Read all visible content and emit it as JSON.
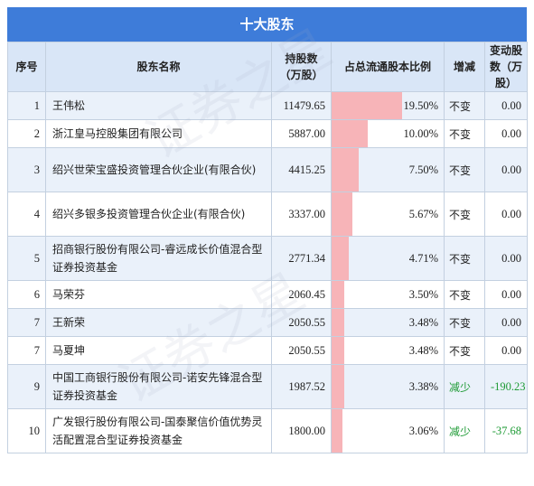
{
  "title": "十大股东",
  "colors": {
    "header_bg": "#3e7cd9",
    "bar": "#f7b4b8",
    "decrease": "#1f9b36"
  },
  "columns": {
    "seq": "序号",
    "name": "股东名称",
    "shares": "持股数（万股）",
    "ratio": "占总流通股本比例",
    "change": "增减",
    "delta": "变动股数（万股）"
  },
  "rows": [
    {
      "seq": "1",
      "name": "王伟松",
      "shares": "11479.65",
      "ratio": "19.50%",
      "ratio_value": 19.5,
      "change": "不变",
      "delta": "0.00"
    },
    {
      "seq": "2",
      "name": "浙江皇马控股集团有限公司",
      "shares": "5887.00",
      "ratio": "10.00%",
      "ratio_value": 10.0,
      "change": "不变",
      "delta": "0.00"
    },
    {
      "seq": "3",
      "name": "绍兴世荣宝盛投资管理合伙企业(有限合伙)",
      "shares": "4415.25",
      "ratio": "7.50%",
      "ratio_value": 7.5,
      "change": "不变",
      "delta": "0.00"
    },
    {
      "seq": "4",
      "name": "绍兴多银多投资管理合伙企业(有限合伙)",
      "shares": "3337.00",
      "ratio": "5.67%",
      "ratio_value": 5.67,
      "change": "不变",
      "delta": "0.00"
    },
    {
      "seq": "5",
      "name": "招商银行股份有限公司-睿远成长价值混合型证券投资基金",
      "shares": "2771.34",
      "ratio": "4.71%",
      "ratio_value": 4.71,
      "change": "不变",
      "delta": "0.00"
    },
    {
      "seq": "6",
      "name": "马荣芬",
      "shares": "2060.45",
      "ratio": "3.50%",
      "ratio_value": 3.5,
      "change": "不变",
      "delta": "0.00"
    },
    {
      "seq": "7",
      "name": "王新荣",
      "shares": "2050.55",
      "ratio": "3.48%",
      "ratio_value": 3.48,
      "change": "不变",
      "delta": "0.00"
    },
    {
      "seq": "7",
      "name": "马夏坤",
      "shares": "2050.55",
      "ratio": "3.48%",
      "ratio_value": 3.48,
      "change": "不变",
      "delta": "0.00"
    },
    {
      "seq": "9",
      "name": "中国工商银行股份有限公司-诺安先锋混合型证券投资基金",
      "shares": "1987.52",
      "ratio": "3.38%",
      "ratio_value": 3.38,
      "change": "减少",
      "delta": "-190.23"
    },
    {
      "seq": "10",
      "name": "广发银行股份有限公司-国泰聚信价值优势灵活配置混合型证券投资基金",
      "shares": "1800.00",
      "ratio": "3.06%",
      "ratio_value": 3.06,
      "change": "减少",
      "delta": "-37.68"
    }
  ]
}
